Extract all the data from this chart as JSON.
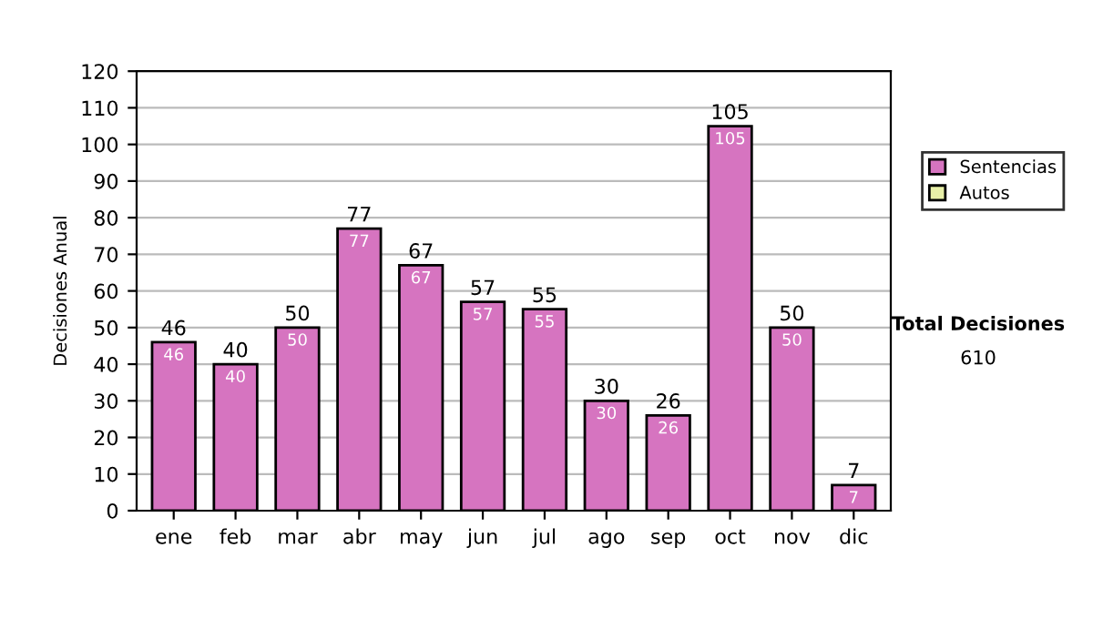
{
  "chart_data": {
    "type": "bar",
    "ylabel": "Decisiones Anual",
    "categories": [
      "ene",
      "feb",
      "mar",
      "abr",
      "may",
      "jun",
      "jul",
      "ago",
      "sep",
      "oct",
      "nov",
      "dic"
    ],
    "series": [
      {
        "name": "Sentencias",
        "color": "#d674c0",
        "values": [
          46,
          40,
          50,
          77,
          67,
          57,
          55,
          30,
          26,
          105,
          50,
          7
        ],
        "value_labels": [
          "46",
          "40",
          "50",
          "77",
          "67",
          "57",
          "55",
          "30",
          "26",
          "105",
          "50",
          "7"
        ]
      },
      {
        "name": "Autos",
        "color": "#e8f0a8",
        "values": [
          null,
          null,
          null,
          null,
          null,
          null,
          null,
          null,
          null,
          null,
          null,
          null
        ]
      }
    ],
    "stacked": true,
    "totals": [
      "46",
      "40",
      "50",
      "77",
      "67",
      "57",
      "55",
      "30",
      "26",
      "105",
      "50",
      "7"
    ],
    "ylim": [
      0,
      120
    ],
    "yticks": [
      0,
      10,
      20,
      30,
      40,
      50,
      60,
      70,
      80,
      90,
      100,
      110,
      120
    ],
    "grid": "y",
    "legend": "right",
    "annotations": [
      "Total Decisiones",
      "610"
    ]
  }
}
